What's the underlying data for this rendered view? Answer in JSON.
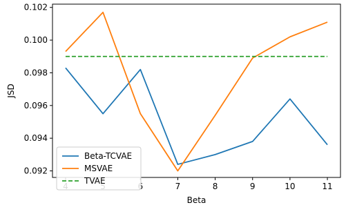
{
  "chart_data": {
    "type": "line",
    "title": "",
    "xlabel": "Beta",
    "ylabel": "JSD",
    "x": [
      4,
      5,
      6,
      7,
      8,
      9,
      10,
      11
    ],
    "x_ticks": [
      "4",
      "5",
      "6",
      "7",
      "8",
      "9",
      "10",
      "11"
    ],
    "xlim": [
      3.65,
      11.35
    ],
    "ylim": [
      0.0916,
      0.1022
    ],
    "y_ticks": [
      "0.092",
      "0.094",
      "0.096",
      "0.098",
      "0.100",
      "0.102"
    ],
    "grid": false,
    "legend_position": "lower-left",
    "series": [
      {
        "name": "Beta-TCVAE",
        "color": "#1f77b4",
        "linestyle": "solid",
        "values": [
          0.0983,
          0.0955,
          0.0982,
          0.0924,
          0.093,
          0.0938,
          0.0964,
          0.0936
        ]
      },
      {
        "name": "MSVAE",
        "color": "#ff7f0e",
        "linestyle": "solid",
        "values": [
          0.0993,
          0.1017,
          0.0955,
          0.092,
          0.0954,
          0.0989,
          0.1002,
          0.1011
        ]
      },
      {
        "name": "TVAE",
        "color": "#2ca02c",
        "linestyle": "dashed",
        "values": [
          0.099,
          0.099,
          0.099,
          0.099,
          0.099,
          0.099,
          0.099,
          0.099
        ]
      }
    ]
  }
}
